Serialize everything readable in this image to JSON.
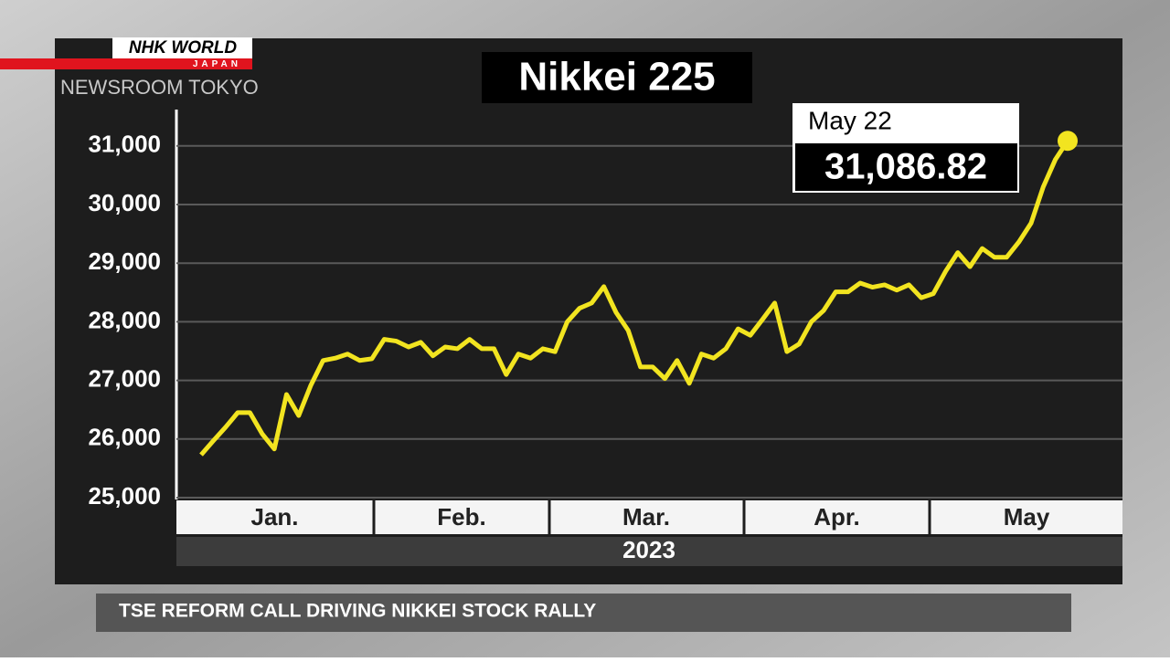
{
  "brand": {
    "logo": "NHK WORLD",
    "sublogo": "JAPAN",
    "program": "NEWSROOM TOKYO"
  },
  "headline": "TSE REFORM CALL DRIVING NIKKEI STOCK RALLY",
  "chart_data": {
    "type": "line",
    "title": "Nikkei 225",
    "annotation": {
      "date": "May 22",
      "value": "31,086.82"
    },
    "month_labels": [
      "Jan.",
      "Feb.",
      "Mar.",
      "Apr.",
      "May"
    ],
    "year_label": "2023",
    "color": "#f2e420",
    "ylim": [
      25000,
      31620
    ],
    "yticks": [
      {
        "value": 25000,
        "label": "25,000"
      },
      {
        "value": 26000,
        "label": "26,000"
      },
      {
        "value": 27000,
        "label": "27,000"
      },
      {
        "value": 28000,
        "label": "28,000"
      },
      {
        "value": 29000,
        "label": "29,000"
      },
      {
        "value": 30000,
        "label": "30,000"
      },
      {
        "value": 31000,
        "label": "31,000"
      }
    ],
    "grid": true,
    "values": [
      25730,
      25970,
      26200,
      26450,
      26450,
      26090,
      25830,
      26760,
      26400,
      26920,
      27340,
      27380,
      27450,
      27340,
      27370,
      27700,
      27670,
      27570,
      27650,
      27420,
      27570,
      27540,
      27700,
      27540,
      27540,
      27100,
      27450,
      27380,
      27540,
      27490,
      28000,
      28230,
      28320,
      28600,
      28160,
      27850,
      27230,
      27230,
      27030,
      27340,
      26950,
      27450,
      27380,
      27540,
      27880,
      27770,
      28040,
      28320,
      27490,
      27620,
      28000,
      28190,
      28510,
      28510,
      28660,
      28590,
      28630,
      28540,
      28630,
      28410,
      28480,
      28860,
      29180,
      28940,
      29250,
      29100,
      29100,
      29360,
      29680,
      30300,
      30770,
      31086.82
    ]
  }
}
